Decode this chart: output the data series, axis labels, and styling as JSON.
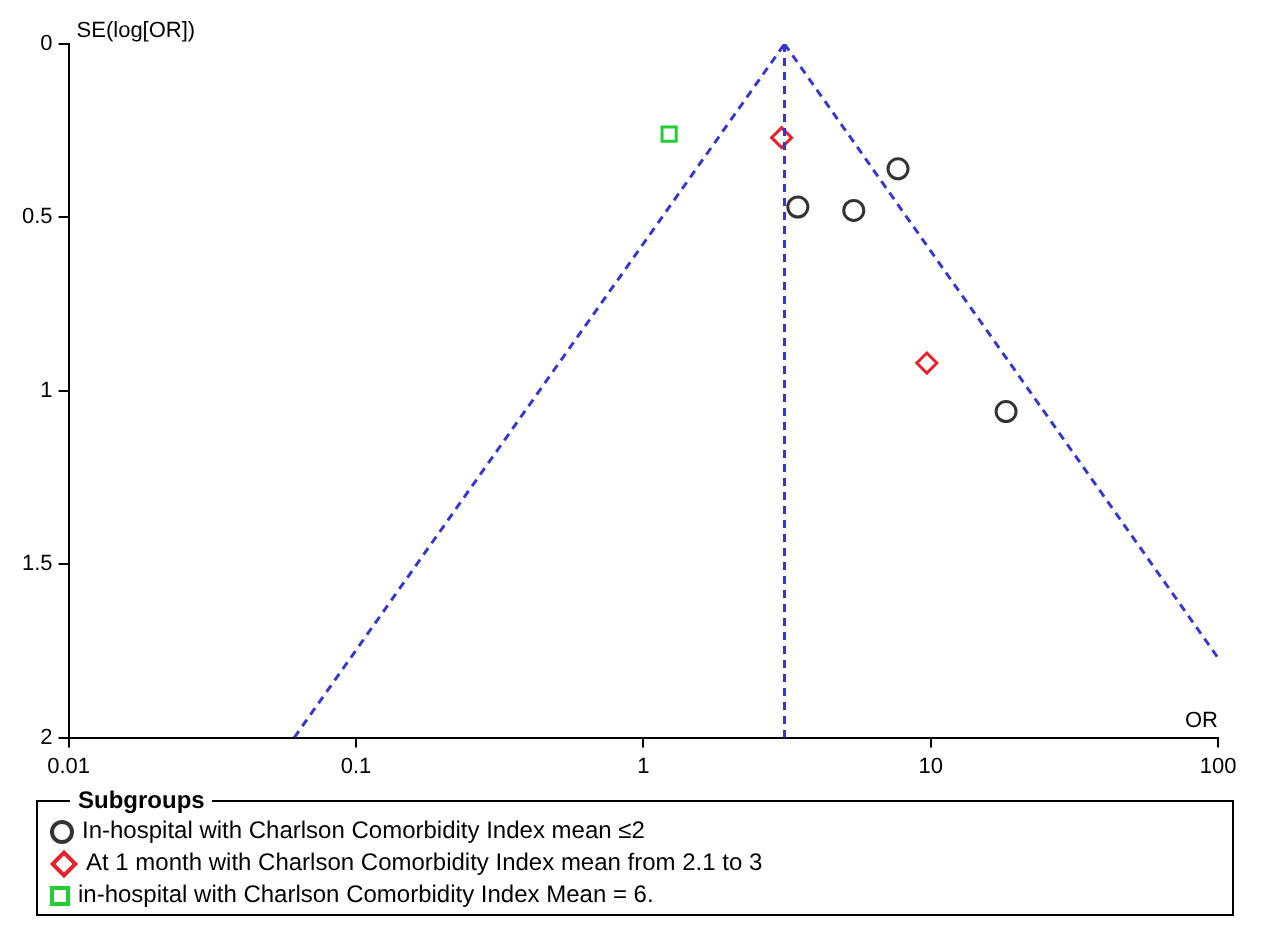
{
  "chart_data": {
    "type": "scatter",
    "xlabel": "OR",
    "ylabel": "SE(log[OR])",
    "legend_title": "Subgroups",
    "legend": "bottom",
    "grid": false,
    "log": "x",
    "xlim": [
      0.01,
      100
    ],
    "xticks": [
      0.01,
      0.1,
      1,
      10,
      100
    ],
    "ylim": [
      2,
      0
    ],
    "yticks": [
      0,
      0.5,
      1,
      1.5,
      2
    ],
    "series": [
      {
        "name": "In-hospital with Charlson Comorbidity Index mean ≤2",
        "marker": "circle",
        "color": "#333333",
        "x": [
          7.7,
          3.45,
          5.4,
          18.3
        ],
        "values": [
          0.36,
          0.47,
          0.48,
          1.06
        ]
      },
      {
        "name": "At 1 month with Charlson Comorbidity Index mean from 2.1 to 3",
        "marker": "diamond",
        "color": "#e8202a",
        "x": [
          3.03,
          9.7
        ],
        "values": [
          0.27,
          0.92
        ]
      },
      {
        "name": "in-hospital with Charlson Comorbidity Index Mean = 6.",
        "marker": "square",
        "color": "#22cc33",
        "x": [
          1.23
        ],
        "values": [
          0.26
        ]
      },
      {
        "type": "line",
        "line_style": "dashed",
        "marker": "none",
        "color": "#3535d0",
        "x": [
          0.061,
          3.1
        ],
        "values": [
          2,
          0
        ]
      },
      {
        "type": "line",
        "line_style": "dashed",
        "marker": "none",
        "color": "#3535d0",
        "x": [
          3.1,
          100
        ],
        "values": [
          0,
          1.77
        ]
      }
    ],
    "ref_lines": [
      {
        "axis": "x",
        "value": 3.1,
        "color": "#3535d0",
        "line_style": "dashed"
      }
    ]
  }
}
